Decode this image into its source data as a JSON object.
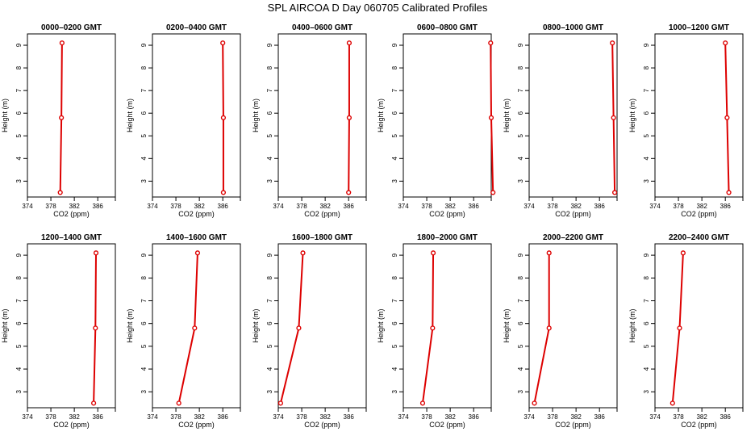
{
  "figure": {
    "title": "SPL AIRCOA D  Day 060705  Calibrated Profiles"
  },
  "colors": {
    "series": "#dd0000",
    "axes": "#000000"
  },
  "chart_data": [
    {
      "type": "line",
      "title": "0000–0200 GMT",
      "xlabel": "CO2 (ppm)",
      "ylabel": "Height (m)",
      "xlim": [
        374,
        389
      ],
      "ylim": [
        2.3,
        9.5
      ],
      "xticks": [
        374,
        378,
        382,
        386
      ],
      "yticks": [
        3,
        4,
        5,
        6,
        7,
        8,
        9
      ],
      "series": [
        {
          "x": [
            379.6,
            379.8,
            379.9
          ],
          "y": [
            2.5,
            5.8,
            9.1
          ]
        }
      ]
    },
    {
      "type": "line",
      "title": "0200–0400 GMT",
      "xlabel": "CO2 (ppm)",
      "ylabel": "Height (m)",
      "xlim": [
        374,
        389
      ],
      "ylim": [
        2.3,
        9.5
      ],
      "xticks": [
        374,
        378,
        382,
        386
      ],
      "yticks": [
        3,
        4,
        5,
        6,
        7,
        8,
        9
      ],
      "series": [
        {
          "x": [
            386.1,
            386.1,
            386.0
          ],
          "y": [
            2.5,
            5.8,
            9.1
          ]
        }
      ]
    },
    {
      "type": "line",
      "title": "0400–0600 GMT",
      "xlabel": "CO2 (ppm)",
      "ylabel": "Height (m)",
      "xlim": [
        374,
        389
      ],
      "ylim": [
        2.3,
        9.5
      ],
      "xticks": [
        374,
        378,
        382,
        386
      ],
      "yticks": [
        3,
        4,
        5,
        6,
        7,
        8,
        9
      ],
      "series": [
        {
          "x": [
            386.0,
            386.1,
            386.1
          ],
          "y": [
            2.5,
            5.8,
            9.1
          ]
        }
      ]
    },
    {
      "type": "line",
      "title": "0600–0800 GMT",
      "xlabel": "CO2 (ppm)",
      "ylabel": "Height (m)",
      "xlim": [
        374,
        389
      ],
      "ylim": [
        2.3,
        9.5
      ],
      "xticks": [
        374,
        378,
        382,
        386
      ],
      "yticks": [
        3,
        4,
        5,
        6,
        7,
        8,
        9
      ],
      "series": [
        {
          "x": [
            389.3,
            389.0,
            388.9
          ],
          "y": [
            2.5,
            5.8,
            9.1
          ]
        }
      ]
    },
    {
      "type": "line",
      "title": "0800–1000 GMT",
      "xlabel": "CO2 (ppm)",
      "ylabel": "Height (m)",
      "xlim": [
        374,
        389
      ],
      "ylim": [
        2.3,
        9.5
      ],
      "xticks": [
        374,
        378,
        382,
        386
      ],
      "yticks": [
        3,
        4,
        5,
        6,
        7,
        8,
        9
      ],
      "series": [
        {
          "x": [
            388.6,
            388.4,
            388.2
          ],
          "y": [
            2.5,
            5.8,
            9.1
          ]
        }
      ]
    },
    {
      "type": "line",
      "title": "1000–1200 GMT",
      "xlabel": "CO2 (ppm)",
      "ylabel": "Height (m)",
      "xlim": [
        374,
        389
      ],
      "ylim": [
        2.3,
        9.5
      ],
      "xticks": [
        374,
        378,
        382,
        386
      ],
      "yticks": [
        3,
        4,
        5,
        6,
        7,
        8,
        9
      ],
      "series": [
        {
          "x": [
            386.6,
            386.3,
            386.0
          ],
          "y": [
            2.5,
            5.8,
            9.1
          ]
        }
      ]
    },
    {
      "type": "line",
      "title": "1200–1400 GMT",
      "xlabel": "CO2 (ppm)",
      "ylabel": "Height (m)",
      "xlim": [
        374,
        389
      ],
      "ylim": [
        2.3,
        9.5
      ],
      "xticks": [
        374,
        378,
        382,
        386
      ],
      "yticks": [
        3,
        4,
        5,
        6,
        7,
        8,
        9
      ],
      "series": [
        {
          "x": [
            385.3,
            385.6,
            385.7
          ],
          "y": [
            2.5,
            5.8,
            9.1
          ]
        }
      ]
    },
    {
      "type": "line",
      "title": "1400–1600 GMT",
      "xlabel": "CO2 (ppm)",
      "ylabel": "Height (m)",
      "xlim": [
        374,
        389
      ],
      "ylim": [
        2.3,
        9.5
      ],
      "xticks": [
        374,
        378,
        382,
        386
      ],
      "yticks": [
        3,
        4,
        5,
        6,
        7,
        8,
        9
      ],
      "series": [
        {
          "x": [
            378.5,
            381.2,
            381.7
          ],
          "y": [
            2.5,
            5.8,
            9.1
          ]
        }
      ]
    },
    {
      "type": "line",
      "title": "1600–1800 GMT",
      "xlabel": "CO2 (ppm)",
      "ylabel": "Height (m)",
      "xlim": [
        374,
        389
      ],
      "ylim": [
        2.3,
        9.5
      ],
      "xticks": [
        374,
        378,
        382,
        386
      ],
      "yticks": [
        3,
        4,
        5,
        6,
        7,
        8,
        9
      ],
      "series": [
        {
          "x": [
            374.4,
            377.5,
            378.2
          ],
          "y": [
            2.5,
            5.8,
            9.1
          ]
        }
      ]
    },
    {
      "type": "line",
      "title": "1800–2000 GMT",
      "xlabel": "CO2 (ppm)",
      "ylabel": "Height (m)",
      "xlim": [
        374,
        389
      ],
      "ylim": [
        2.3,
        9.5
      ],
      "xticks": [
        374,
        378,
        382,
        386
      ],
      "yticks": [
        3,
        4,
        5,
        6,
        7,
        8,
        9
      ],
      "series": [
        {
          "x": [
            377.3,
            379.0,
            379.1
          ],
          "y": [
            2.5,
            5.8,
            9.1
          ]
        }
      ]
    },
    {
      "type": "line",
      "title": "2000–2200 GMT",
      "xlabel": "CO2 (ppm)",
      "ylabel": "Height (m)",
      "xlim": [
        374,
        389
      ],
      "ylim": [
        2.3,
        9.5
      ],
      "xticks": [
        374,
        378,
        382,
        386
      ],
      "yticks": [
        3,
        4,
        5,
        6,
        7,
        8,
        9
      ],
      "series": [
        {
          "x": [
            374.9,
            377.4,
            377.4
          ],
          "y": [
            2.5,
            5.8,
            9.1
          ]
        }
      ]
    },
    {
      "type": "line",
      "title": "2200–2400 GMT",
      "xlabel": "CO2 (ppm)",
      "ylabel": "Height (m)",
      "xlim": [
        374,
        389
      ],
      "ylim": [
        2.3,
        9.5
      ],
      "xticks": [
        374,
        378,
        382,
        386
      ],
      "yticks": [
        3,
        4,
        5,
        6,
        7,
        8,
        9
      ],
      "series": [
        {
          "x": [
            377.0,
            378.2,
            378.8
          ],
          "y": [
            2.5,
            5.8,
            9.1
          ]
        }
      ]
    }
  ]
}
